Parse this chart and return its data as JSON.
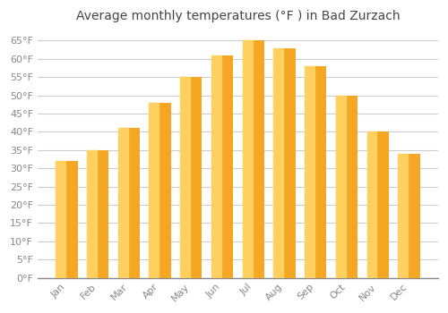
{
  "months": [
    "Jan",
    "Feb",
    "Mar",
    "Apr",
    "May",
    "Jun",
    "Jul",
    "Aug",
    "Sep",
    "Oct",
    "Nov",
    "Dec"
  ],
  "values": [
    32,
    35,
    41,
    48,
    55,
    61,
    65,
    63,
    58,
    50,
    40,
    34
  ],
  "bar_color_main": "#F5A623",
  "bar_color_light": "#FFD060",
  "title": "Average monthly temperatures (°F ) in Bad Zurzach",
  "ylim": [
    0,
    68
  ],
  "yticks": [
    0,
    5,
    10,
    15,
    20,
    25,
    30,
    35,
    40,
    45,
    50,
    55,
    60,
    65
  ],
  "ytick_labels": [
    "0°F",
    "5°F",
    "10°F",
    "15°F",
    "20°F",
    "25°F",
    "30°F",
    "35°F",
    "40°F",
    "45°F",
    "50°F",
    "55°F",
    "60°F",
    "65°F"
  ],
  "background_color": "#FFFFFF",
  "plot_background_color": "#FFFFFF",
  "grid_color": "#CCCCCC",
  "title_fontsize": 10,
  "tick_fontsize": 8,
  "tick_color": "#888888",
  "title_color": "#444444"
}
